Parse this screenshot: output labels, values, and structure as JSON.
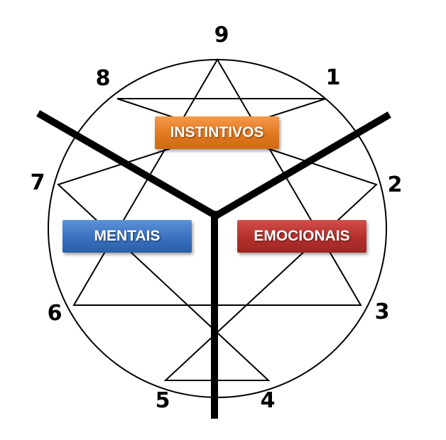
{
  "enneagram": {
    "points": {
      "p1": "1",
      "p2": "2",
      "p3": "3",
      "p4": "4",
      "p5": "5",
      "p6": "6",
      "p7": "7",
      "p8": "8",
      "p9": "9"
    },
    "centers": {
      "instintivos": {
        "label": "INSTINTIVOS",
        "color": "#e0781f"
      },
      "mentais": {
        "label": "MENTAIS",
        "color": "#3a70bf"
      },
      "emocionais": {
        "label": "EMOCIONAIS",
        "color": "#b3302c"
      }
    }
  }
}
